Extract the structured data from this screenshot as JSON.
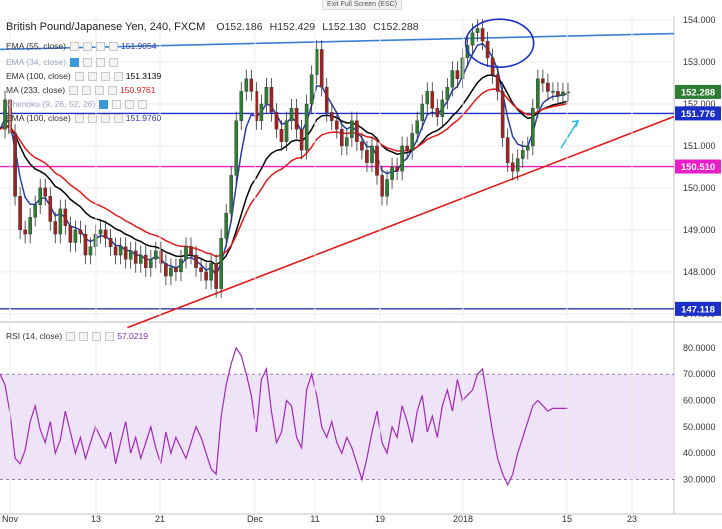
{
  "window": {
    "fullscreen_hint": "Exit Full Screen (ESC)"
  },
  "header": {
    "symbol": "British Pound/Japanese Yen, 240, FXCM",
    "open": "O152.186",
    "high": "H152.429",
    "low": "L152.130",
    "close": "C152.288"
  },
  "indicators": [
    {
      "label": "EMA (55, close)",
      "value": "151.9054",
      "color": "#2b3ea6"
    },
    {
      "label": "EMA (34, close)",
      "value": "",
      "color": "#8aa1d6",
      "hidden": true
    },
    {
      "label": "EMA (100, close)",
      "value": "151.3139",
      "color": "#000000"
    },
    {
      "label": "MA (233, close)",
      "value": "150.9761",
      "color": "#e31a1c"
    },
    {
      "label": "Ichimoku (9, 26, 52, 26)",
      "value": "",
      "color": "#7aa0c8",
      "hidden": true
    },
    {
      "label": "EMA (100, close)",
      "value": "151.9760",
      "color": "#2b3ea6"
    }
  ],
  "rsi": {
    "label": "RSI (14, close)",
    "value": "57.0219"
  },
  "chart_data": [
    {
      "type": "candlestick",
      "title": "British Pound/Japanese Yen, 240, FXCM",
      "y_ticks": [
        "154.000",
        "153.000",
        "152.000",
        "151.000",
        "150.000",
        "149.000",
        "148.000",
        "147.000"
      ],
      "ylim": [
        146.9,
        154.05
      ],
      "x_ticks": [
        "Nov",
        "13",
        "21",
        "Dec",
        "11",
        "19",
        "2018",
        "15",
        "23"
      ],
      "price_labels": [
        {
          "value": "152.288",
          "color": "#2e7d32"
        },
        {
          "value": "151.776",
          "color": "#1a2ec8"
        },
        {
          "value": "150.510",
          "color": "#e91ec8"
        },
        {
          "value": "147.118",
          "color": "#1a2ec8"
        }
      ],
      "horizontal_levels": [
        {
          "value": 151.776,
          "color": "#1a2ec8"
        },
        {
          "value": 150.51,
          "color": "#e91ec8"
        },
        {
          "value": 147.118,
          "color": "#2b3ea6"
        }
      ],
      "trendlines": [
        {
          "points": [
            [
              0,
              153.3
            ],
            [
              330,
              153.68
            ]
          ],
          "color": "#3b7fd1"
        },
        {
          "points": [
            [
              74,
              146.67
            ],
            [
              330,
              151.7
            ]
          ],
          "color": "#e31a1c"
        }
      ],
      "series": [
        {
          "name": "close",
          "x": [
            0,
            6,
            12,
            18,
            24,
            30,
            36,
            42,
            48,
            54,
            60,
            66,
            72,
            78,
            84,
            90,
            96,
            102,
            108,
            114,
            120,
            126,
            132,
            138,
            144,
            150,
            156,
            162,
            168,
            174,
            180,
            186,
            192,
            198,
            204,
            210,
            216,
            222,
            228,
            234,
            240,
            246,
            252,
            258,
            264,
            270,
            276,
            282,
            288,
            294,
            300,
            306,
            312,
            318,
            324,
            330
          ],
          "values": [
            151.2,
            151.6,
            150.9,
            149.6,
            149.0,
            148.7,
            148.9,
            149.3,
            149.8,
            149.9,
            149.4,
            149.2,
            148.9,
            149.1,
            148.6,
            148.3,
            148.5,
            148.8,
            148.7,
            148.4,
            148.2,
            148.5,
            148.0,
            147.9,
            148.3,
            148.6,
            148.3,
            148.2,
            147.6,
            148.6,
            150.2,
            151.5,
            152.1,
            152.5,
            152.6,
            151.9,
            151.4,
            150.6,
            150.0,
            150.4,
            150.5,
            151.5,
            152.9,
            153.3,
            152.5,
            152.0,
            151.8,
            151.6,
            151.4,
            151.2,
            151.0,
            150.8,
            150.5,
            150.4,
            151.3,
            150.8
          ]
        },
        {
          "name": "close",
          "x": [
            0,
            5,
            10,
            15,
            20,
            25,
            30,
            35,
            40,
            45,
            50,
            55,
            60,
            65,
            70,
            75,
            80,
            85,
            90,
            95,
            100,
            105,
            110,
            115,
            120,
            125,
            130,
            135,
            140,
            145,
            150,
            155,
            160,
            165,
            170,
            175,
            180,
            185,
            190,
            195,
            200,
            205,
            210,
            215,
            220,
            225,
            230,
            235,
            240,
            245,
            250,
            255,
            260,
            265,
            270,
            275,
            280,
            285,
            290,
            295,
            300,
            305,
            310,
            315,
            320,
            325,
            330,
            335,
            340,
            345,
            350,
            355,
            360,
            365,
            370,
            375,
            380,
            385,
            390,
            395,
            400,
            405,
            410,
            415,
            420,
            425,
            430,
            435,
            440,
            445,
            450,
            455,
            460,
            465,
            470,
            475,
            480,
            485,
            490,
            495,
            500,
            505,
            510,
            515,
            520,
            525,
            530,
            535,
            540,
            545,
            550,
            555,
            560,
            565
          ],
          "values": [
            151.4,
            152.1,
            151.3,
            149.8,
            149.0,
            148.9,
            149.3,
            149.6,
            150.0,
            149.8,
            149.2,
            148.9,
            149.5,
            149.1,
            148.7,
            149.0,
            148.9,
            148.4,
            148.6,
            148.9,
            149.0,
            148.8,
            148.6,
            148.4,
            148.6,
            148.3,
            148.5,
            148.2,
            148.4,
            148.1,
            148.3,
            148.5,
            148.2,
            147.9,
            148.1,
            148.0,
            148.3,
            148.6,
            148.4,
            148.1,
            148.0,
            147.8,
            148.2,
            147.6,
            148.8,
            149.4,
            150.3,
            151.6,
            152.3,
            152.6,
            152.3,
            151.6,
            152.0,
            152.4,
            151.8,
            151.4,
            151.1,
            151.6,
            151.9,
            151.4,
            150.9,
            152.0,
            152.7,
            153.3,
            152.4,
            151.8,
            151.6,
            151.4,
            151.0,
            151.2,
            151.6,
            151.1,
            150.9,
            150.6,
            151.0,
            150.3,
            149.8,
            150.2,
            150.5,
            150.4,
            151.0,
            150.9,
            151.3,
            151.6,
            152.0,
            152.3,
            151.9,
            151.7,
            152.1,
            152.4,
            152.8,
            152.6,
            153.1,
            153.4,
            153.7,
            153.8,
            153.5,
            153.1,
            152.7,
            152.3,
            151.2,
            150.6,
            150.4,
            150.7,
            150.9,
            151.0,
            151.9,
            152.6,
            152.5,
            152.3,
            152.3,
            152.2,
            152.288,
            152.288
          ]
        }
      ]
    },
    {
      "type": "line",
      "title": "RSI (14, close)",
      "y_ticks": [
        "80.0000",
        "70.0000",
        "60.0000",
        "50.0000",
        "40.0000",
        "30.0000"
      ],
      "ylim": [
        26,
        83
      ],
      "x_ticks": [
        "Nov",
        "13",
        "21",
        "Dec",
        "11",
        "19",
        "2018",
        "15",
        "23"
      ],
      "band": [
        30,
        70
      ],
      "series": [
        {
          "name": "RSI",
          "x": [
            0,
            5,
            10,
            15,
            20,
            25,
            30,
            35,
            40,
            45,
            50,
            55,
            60,
            65,
            70,
            75,
            80,
            85,
            90,
            95,
            100,
            105,
            110,
            115,
            120,
            125,
            130,
            135,
            140,
            145,
            150,
            155,
            160,
            165,
            170,
            175,
            180,
            185,
            190,
            195,
            200,
            205,
            210,
            215,
            220,
            225,
            230,
            235,
            240,
            245,
            250,
            255,
            260,
            265,
            270,
            275,
            280,
            285,
            290,
            295,
            300,
            305,
            310,
            315,
            320,
            325,
            330,
            335,
            340,
            345,
            350,
            355,
            360,
            365,
            370,
            375,
            380,
            385,
            390,
            395,
            400,
            405,
            410,
            415,
            420,
            425,
            430,
            435,
            440,
            445,
            450,
            455,
            460,
            465,
            470,
            475,
            480,
            485,
            490,
            495,
            500,
            505,
            510,
            515,
            520,
            525,
            530,
            535,
            540,
            545,
            550,
            555,
            560,
            565
          ],
          "values": [
            70,
            66,
            55,
            38,
            36,
            41,
            52,
            58,
            49,
            44,
            52,
            40,
            45,
            56,
            48,
            40,
            46,
            38,
            44,
            50,
            46,
            42,
            48,
            36,
            44,
            52,
            40,
            46,
            38,
            44,
            50,
            42,
            36,
            48,
            40,
            46,
            42,
            38,
            44,
            50,
            46,
            40,
            34,
            32,
            54,
            66,
            74,
            80,
            77,
            70,
            62,
            48,
            68,
            72,
            56,
            44,
            48,
            60,
            58,
            46,
            42,
            64,
            70,
            62,
            50,
            46,
            52,
            44,
            40,
            46,
            42,
            36,
            30,
            38,
            48,
            56,
            44,
            40,
            50,
            46,
            58,
            52,
            44,
            56,
            62,
            48,
            54,
            46,
            58,
            64,
            56,
            68,
            60,
            62,
            64,
            70,
            72,
            60,
            48,
            38,
            32,
            28,
            32,
            40,
            46,
            52,
            58,
            60,
            58,
            56,
            57,
            57,
            57,
            57
          ]
        }
      ]
    }
  ]
}
